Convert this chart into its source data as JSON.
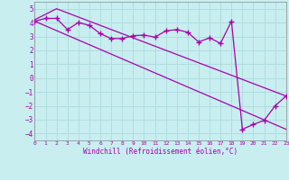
{
  "xlabel": "Windchill (Refroidissement éolien,°C)",
  "bg_color": "#c8eef0",
  "grid_color": "#b0dde0",
  "line_color": "#aa00aa",
  "x_ticks": [
    0,
    1,
    2,
    3,
    4,
    5,
    6,
    7,
    8,
    9,
    10,
    11,
    12,
    13,
    14,
    15,
    16,
    17,
    18,
    19,
    20,
    21,
    22,
    23
  ],
  "y_ticks": [
    -4,
    -3,
    -2,
    -1,
    0,
    1,
    2,
    3,
    4,
    5
  ],
  "xlim": [
    0,
    23
  ],
  "ylim": [
    -4.5,
    5.5
  ],
  "line1_x": [
    0,
    1,
    2,
    3,
    4,
    5,
    6,
    7,
    8,
    9,
    10,
    11,
    12,
    13,
    14,
    15,
    16,
    17,
    18,
    19,
    20,
    21,
    22,
    23
  ],
  "line1_y": [
    4.1,
    4.3,
    4.3,
    3.5,
    4.0,
    3.8,
    3.2,
    2.85,
    2.85,
    3.05,
    3.1,
    2.95,
    3.4,
    3.5,
    3.3,
    2.6,
    2.9,
    2.5,
    4.1,
    -3.7,
    -3.35,
    -3.05,
    -2.0,
    -1.3
  ],
  "line2_x": [
    0,
    23
  ],
  "line2_y": [
    4.1,
    -3.7
  ],
  "line3_x": [
    0,
    2,
    23
  ],
  "line3_y": [
    4.2,
    5.0,
    -1.3
  ]
}
